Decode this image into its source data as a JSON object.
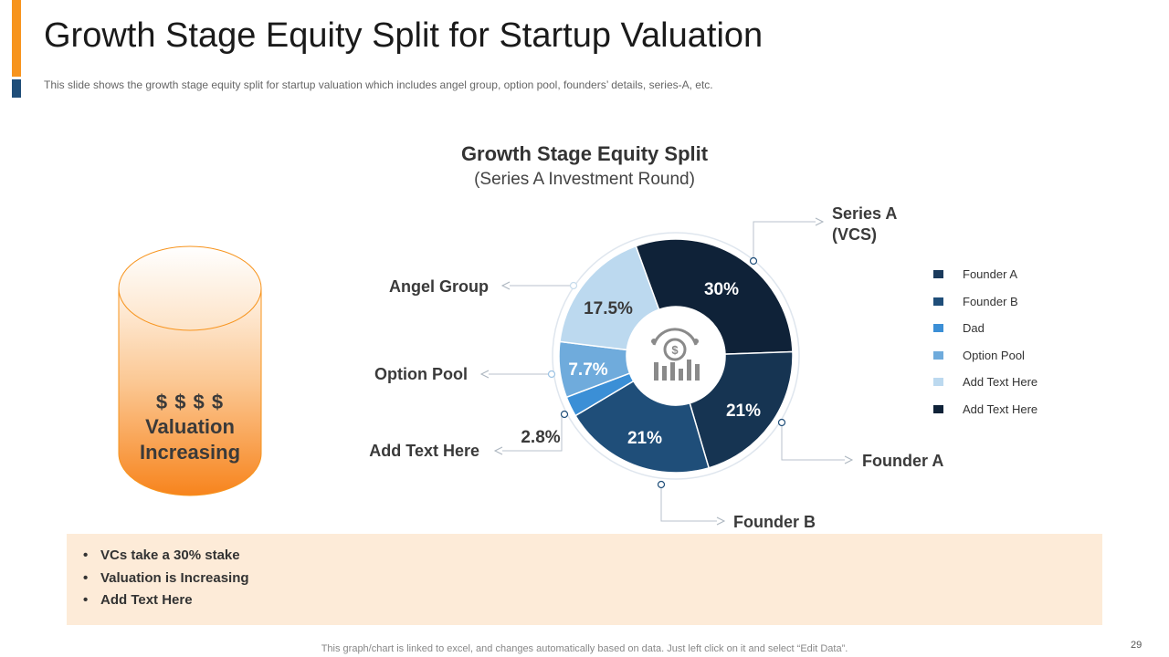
{
  "slide": {
    "title": "Growth Stage Equity Split for Startup Valuation",
    "subtitle": "This slide shows the growth  stage equity split for startup valuation  which includes angel group, option pool, founders’ details, series-A, etc.",
    "footer": "This graph/chart is linked to excel,  and changes automatically based on data. Just left click on it and select “Edit Data”.",
    "page_number": "29"
  },
  "cylinder": {
    "line1": "$ $ $ $",
    "line2": "Valuation",
    "line3": "Increasing"
  },
  "notes": [
    "VCs take a 30% stake",
    "Valuation is Increasing",
    "Add Text Here"
  ],
  "legend": [
    {
      "label": "Founder A",
      "color": "#1a3a5c"
    },
    {
      "label": "Founder B",
      "color": "#1f4e79"
    },
    {
      "label": "Dad",
      "color": "#3b8fd6"
    },
    {
      "label": "Option Pool",
      "color": "#6fabdc"
    },
    {
      "label": "Add Text Here",
      "color": "#bcd9ef"
    },
    {
      "label": "Add Text Here",
      "color": "#0f2238"
    }
  ],
  "chart_data": {
    "type": "pie",
    "variant": "doughnut",
    "title": "Growth Stage Equity Split",
    "subtitle": "(Series A Investment Round)",
    "slices": [
      {
        "name": "Series A (VCS)",
        "value": 30,
        "label": "30%",
        "color": "#0f2238"
      },
      {
        "name": "Founder A",
        "value": 21,
        "label": "21%",
        "color": "#163452"
      },
      {
        "name": "Founder B",
        "value": 21,
        "label": "21%",
        "color": "#1f4e79"
      },
      {
        "name": "Add Text Here",
        "value": 2.8,
        "label": "2.8%",
        "color": "#3b8fd6"
      },
      {
        "name": "Option Pool",
        "value": 7.7,
        "label": "7.7%",
        "color": "#6fabdc"
      },
      {
        "name": "Angel Group",
        "value": 17.5,
        "label": "17.5%",
        "color": "#bcd9ef"
      }
    ],
    "callouts": [
      {
        "text": "Series A",
        "text2": "(VCS)"
      },
      {
        "text": "Founder A"
      },
      {
        "text": "Founder B"
      },
      {
        "text": "Add Text Here"
      },
      {
        "text": "Option Pool"
      },
      {
        "text": "Angel Group"
      }
    ]
  }
}
